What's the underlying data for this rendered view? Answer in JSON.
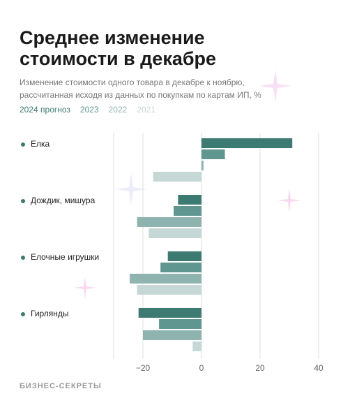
{
  "chart_data": {
    "type": "hbar",
    "title_lines": [
      "Среднее изменение",
      "стоимости в декабре"
    ],
    "subtitle_lines": [
      "Изменение стоимости одного товара в декабре к ноябрю,",
      "рассчитанная исходя из данных по покупкам по картам ИП, %"
    ],
    "categories": [
      "Елка",
      "Дождик, мишура",
      "Елочные игрушки",
      "Гирлянды"
    ],
    "series": [
      {
        "name": "2024 прогноз",
        "color": "#3d7a72",
        "values": [
          31,
          -8,
          -11.5,
          -21.5
        ]
      },
      {
        "name": "2023",
        "color": "#5f9690",
        "values": [
          8,
          -9.5,
          -14,
          -14.5
        ]
      },
      {
        "name": "2022",
        "color": "#8fb3ae",
        "values": [
          0.7,
          -22,
          -24.5,
          -20
        ]
      },
      {
        "name": "2021",
        "color": "#c5d8d5",
        "values": [
          -16.5,
          -18,
          -22,
          -3
        ]
      }
    ],
    "xlim": [
      -30,
      40
    ],
    "xticks": [
      {
        "value": -20,
        "label": "−20"
      },
      0,
      20,
      40
    ],
    "grid": true,
    "footer": "БИЗНЕС-СЕКРЕТЫ"
  }
}
